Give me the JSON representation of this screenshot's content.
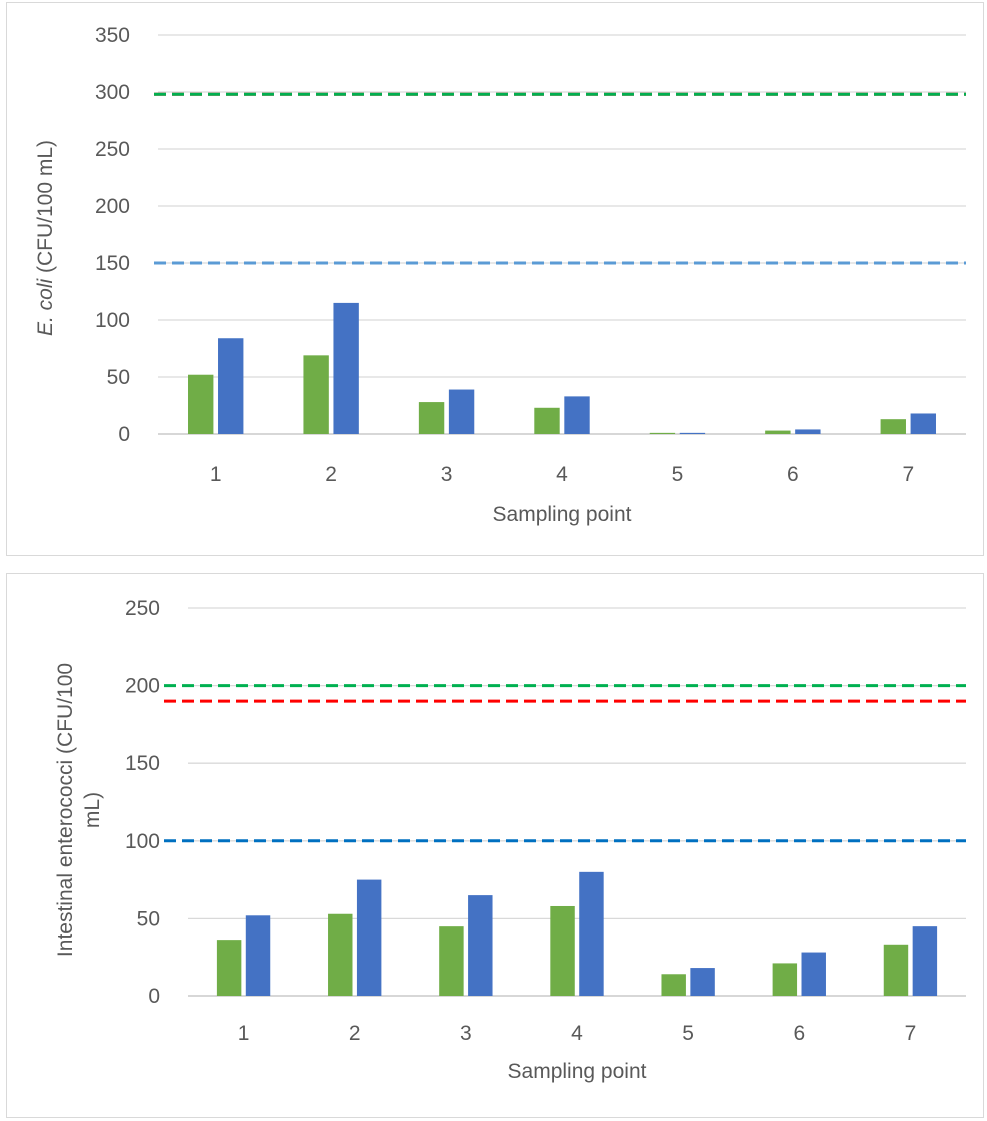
{
  "chart_data": [
    {
      "type": "bar",
      "ylabel_italic": "E. coli",
      "ylabel_rest": " (CFU/100 mL)",
      "xlabel": "Sampling  point",
      "categories": [
        "1",
        "2",
        "3",
        "4",
        "5",
        "6",
        "7"
      ],
      "ylim": [
        0,
        350
      ],
      "yticks": [
        0,
        50,
        100,
        150,
        200,
        250,
        300,
        350
      ],
      "grid": true,
      "series": [
        {
          "color": "#70ad47",
          "values": [
            52,
            69,
            28,
            23,
            1,
            3,
            13
          ]
        },
        {
          "color": "#4472c4",
          "values": [
            84,
            115,
            39,
            33,
            1,
            4,
            18
          ]
        }
      ],
      "reference_lines": [
        {
          "value": 298,
          "color": "#ff0000",
          "style": "dashed"
        },
        {
          "value": 298,
          "color": "#00b050",
          "style": "dashed"
        },
        {
          "value": 150,
          "color": "#5b9bd5",
          "style": "dashed"
        }
      ]
    },
    {
      "type": "bar",
      "ylabel": "Intestinal enterococci (CFU/100 mL)",
      "ylabel_line1": "Intestinal enterococci (CFU/100",
      "ylabel_line2": "mL)",
      "xlabel": "Sampling  point",
      "categories": [
        "1",
        "2",
        "3",
        "4",
        "5",
        "6",
        "7"
      ],
      "ylim": [
        0,
        250
      ],
      "yticks": [
        0,
        50,
        100,
        150,
        200,
        250
      ],
      "grid": true,
      "series": [
        {
          "color": "#70ad47",
          "values": [
            36,
            53,
            45,
            58,
            14,
            21,
            33
          ]
        },
        {
          "color": "#4472c4",
          "values": [
            52,
            75,
            65,
            80,
            18,
            28,
            45
          ]
        }
      ],
      "reference_lines": [
        {
          "value": 200,
          "color": "#00b050",
          "style": "dashed"
        },
        {
          "value": 190,
          "color": "#ff0000",
          "style": "dashed"
        },
        {
          "value": 100,
          "color": "#0070c0",
          "style": "dashed"
        }
      ]
    }
  ]
}
